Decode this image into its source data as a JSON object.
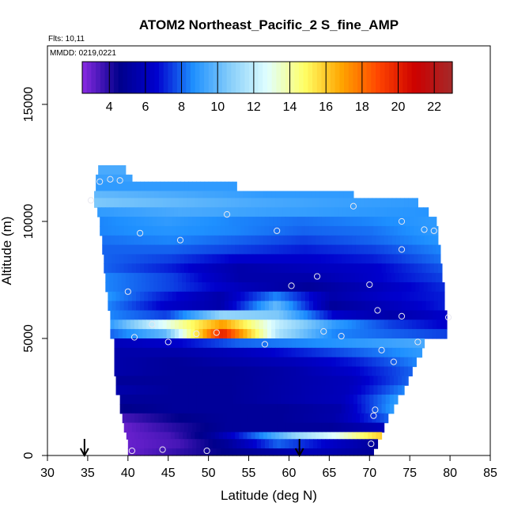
{
  "chart_data": {
    "type": "heatmap",
    "title": "ATOM2 Northeast_Pacific_2 S_fine_AMP",
    "flights_label": "Flts: 10,11",
    "dates_label": "MMDD: 0219,0221",
    "xlabel": "Latitude (deg N)",
    "ylabel": "Altitude (m)",
    "xlim": [
      30,
      85
    ],
    "ylim": [
      0,
      17500
    ],
    "xticks": [
      "30",
      "35",
      "40",
      "45",
      "50",
      "55",
      "60",
      "65",
      "70",
      "75",
      "80",
      "85"
    ],
    "yticks": [
      "0",
      "5000",
      "10000",
      "15000"
    ],
    "colorbar": {
      "range": [
        2.5,
        23
      ],
      "ticks": [
        "4",
        "6",
        "8",
        "10",
        "12",
        "14",
        "16",
        "18",
        "20",
        "22"
      ],
      "colors": [
        "#8a2be2",
        "#00008b",
        "#0000cd",
        "#1e90ff",
        "#87cefa",
        "#e0ffff",
        "#ffff66",
        "#ffa500",
        "#ff4500",
        "#cc0000",
        "#a52a2a"
      ]
    },
    "field_rows": [
      {
        "alt": 12000,
        "x0": 36.3,
        "x1": 39.7,
        "v": [
          9.5
        ]
      },
      {
        "alt": 11700,
        "x0": 36.0,
        "x1": 40.5,
        "v": [
          9.2
        ]
      },
      {
        "alt": 11300,
        "x0": 36.0,
        "x1": 53.5,
        "v": [
          9.0,
          9.0
        ]
      },
      {
        "alt": 11000,
        "x0": 35.8,
        "x1": 68.0,
        "v": [
          10.0,
          9.5,
          9.0,
          9.0
        ]
      },
      {
        "alt": 10600,
        "x0": 35.8,
        "x1": 76.0,
        "v": [
          10.5,
          10.0,
          9.5,
          9.2,
          9.0
        ]
      },
      {
        "alt": 10200,
        "x0": 36.2,
        "x1": 77.3,
        "v": [
          9.0,
          9.5,
          9.2,
          9.0,
          8.8
        ]
      },
      {
        "alt": 9800,
        "x0": 36.5,
        "x1": 78.3,
        "v": [
          8.5,
          9.0,
          8.5,
          8.2,
          8.5,
          9.0
        ]
      },
      {
        "alt": 9400,
        "x0": 36.5,
        "x1": 78.5,
        "v": [
          8.5,
          8.8,
          8.5,
          8.0,
          8.2,
          9.0
        ]
      },
      {
        "alt": 9000,
        "x0": 36.8,
        "x1": 78.5,
        "v": [
          8.2,
          8.5,
          8.0,
          7.5,
          8.0,
          8.8
        ]
      },
      {
        "alt": 8600,
        "x0": 36.8,
        "x1": 78.8,
        "v": [
          8.0,
          8.0,
          7.5,
          7.0,
          7.5,
          8.5
        ]
      },
      {
        "alt": 8200,
        "x0": 37.0,
        "x1": 78.8,
        "v": [
          8.0,
          7.5,
          6.5,
          6.5,
          7.0,
          8.2
        ]
      },
      {
        "alt": 7800,
        "x0": 37.0,
        "x1": 79.0,
        "v": [
          8.0,
          7.0,
          5.5,
          6.0,
          6.5,
          7.8
        ]
      },
      {
        "alt": 7400,
        "x0": 37.2,
        "x1": 79.0,
        "v": [
          8.5,
          7.5,
          5.5,
          5.5,
          6.5,
          7.5
        ]
      },
      {
        "alt": 7000,
        "x0": 37.2,
        "x1": 79.3,
        "v": [
          8.5,
          7.5,
          6.0,
          5.0,
          6.0,
          7.2
        ]
      },
      {
        "alt": 6600,
        "x0": 37.5,
        "x1": 79.3,
        "v": [
          8.8,
          7.0,
          5.5,
          8.5,
          5.5,
          6.5,
          7.0
        ]
      },
      {
        "alt": 6200,
        "x0": 37.5,
        "x1": 79.3,
        "v": [
          8.5,
          6.5,
          5.5,
          10.0,
          5.0,
          6.0,
          7.0
        ]
      },
      {
        "alt": 5800,
        "x0": 37.8,
        "x1": 79.6,
        "v": [
          8.5,
          7.5,
          11.0,
          10.5,
          6.5,
          5.5,
          6.5
        ]
      },
      {
        "alt": 5400,
        "x0": 37.8,
        "x1": 79.6,
        "v": [
          9.0,
          13.0,
          17.0,
          12.0,
          9.0,
          7.5,
          6.5
        ]
      },
      {
        "alt": 5000,
        "x0": 37.8,
        "x1": 79.6,
        "v": [
          8.0,
          10.0,
          20.0,
          11.5,
          8.5,
          8.0,
          7.5
        ]
      },
      {
        "alt": 4600,
        "x0": 38.3,
        "x1": 76.8,
        "v": [
          6.0,
          6.5,
          8.0,
          8.5,
          9.0,
          9.5
        ]
      },
      {
        "alt": 4200,
        "x0": 38.3,
        "x1": 76.5,
        "v": [
          5.5,
          5.5,
          6.0,
          7.0,
          8.0,
          9.0
        ]
      },
      {
        "alt": 3800,
        "x0": 38.3,
        "x1": 75.8,
        "v": [
          5.5,
          5.0,
          5.5,
          6.0,
          7.0,
          8.5
        ]
      },
      {
        "alt": 3400,
        "x0": 38.3,
        "x1": 75.3,
        "v": [
          5.5,
          5.0,
          5.0,
          5.5,
          6.5,
          8.0
        ]
      },
      {
        "alt": 3000,
        "x0": 38.5,
        "x1": 74.8,
        "v": [
          5.0,
          5.0,
          5.0,
          5.5,
          6.0,
          8.0
        ]
      },
      {
        "alt": 2600,
        "x0": 38.5,
        "x1": 74.3,
        "v": [
          5.5,
          5.0,
          5.0,
          5.5,
          6.0,
          8.5
        ]
      },
      {
        "alt": 2200,
        "x0": 39.0,
        "x1": 73.5,
        "v": [
          5.0,
          5.0,
          5.0,
          5.5,
          6.0,
          9.0
        ]
      },
      {
        "alt": 1800,
        "x0": 39.0,
        "x1": 73.0,
        "v": [
          4.5,
          5.0,
          5.0,
          5.0,
          5.5,
          9.0
        ]
      },
      {
        "alt": 1400,
        "x0": 39.3,
        "x1": 72.3,
        "v": [
          3.5,
          4.5,
          5.0,
          5.0,
          5.5,
          8.0
        ]
      },
      {
        "alt": 1000,
        "x0": 39.5,
        "x1": 71.8,
        "v": [
          3.0,
          4.0,
          5.0,
          5.0,
          5.0,
          6.0
        ]
      },
      {
        "alt": 700,
        "x0": 39.8,
        "x1": 71.5,
        "v": [
          3.0,
          3.5,
          5.0,
          8.0,
          11.0,
          13.0,
          16.0
        ]
      },
      {
        "alt": 300,
        "x0": 40.0,
        "x1": 71.0,
        "v": [
          3.0,
          3.5,
          5.0,
          8.0,
          6.5,
          5.0
        ]
      },
      {
        "alt": 0,
        "x0": 40.0,
        "x1": 70.5,
        "v": [
          3.0,
          4.0,
          5.0,
          6.0,
          5.0
        ]
      }
    ],
    "points": [
      {
        "x": 36.5,
        "y": 11700
      },
      {
        "x": 37.8,
        "y": 11800
      },
      {
        "x": 39.0,
        "y": 11750
      },
      {
        "x": 35.4,
        "y": 10900
      },
      {
        "x": 52.3,
        "y": 10300
      },
      {
        "x": 68.0,
        "y": 10650
      },
      {
        "x": 41.5,
        "y": 9500
      },
      {
        "x": 58.5,
        "y": 9600
      },
      {
        "x": 74.0,
        "y": 10000
      },
      {
        "x": 76.8,
        "y": 9650
      },
      {
        "x": 78.0,
        "y": 9600
      },
      {
        "x": 46.5,
        "y": 9200
      },
      {
        "x": 74.0,
        "y": 8800
      },
      {
        "x": 63.5,
        "y": 7650
      },
      {
        "x": 60.3,
        "y": 7250
      },
      {
        "x": 70.0,
        "y": 7300
      },
      {
        "x": 40.0,
        "y": 7000
      },
      {
        "x": 71.0,
        "y": 6200
      },
      {
        "x": 74.0,
        "y": 5950
      },
      {
        "x": 79.8,
        "y": 5900
      },
      {
        "x": 43.0,
        "y": 5600
      },
      {
        "x": 64.3,
        "y": 5300
      },
      {
        "x": 66.5,
        "y": 5100
      },
      {
        "x": 40.8,
        "y": 5050
      },
      {
        "x": 48.5,
        "y": 5200
      },
      {
        "x": 51.0,
        "y": 5250
      },
      {
        "x": 45.0,
        "y": 4850
      },
      {
        "x": 57.0,
        "y": 4750
      },
      {
        "x": 76.0,
        "y": 4850
      },
      {
        "x": 71.5,
        "y": 4500
      },
      {
        "x": 73.0,
        "y": 4000
      },
      {
        "x": 70.7,
        "y": 1950
      },
      {
        "x": 70.5,
        "y": 1700
      },
      {
        "x": 70.2,
        "y": 500
      },
      {
        "x": 40.5,
        "y": 200
      },
      {
        "x": 44.3,
        "y": 250
      },
      {
        "x": 49.8,
        "y": 200
      }
    ],
    "arrows": [
      34.6,
      61.3
    ]
  }
}
